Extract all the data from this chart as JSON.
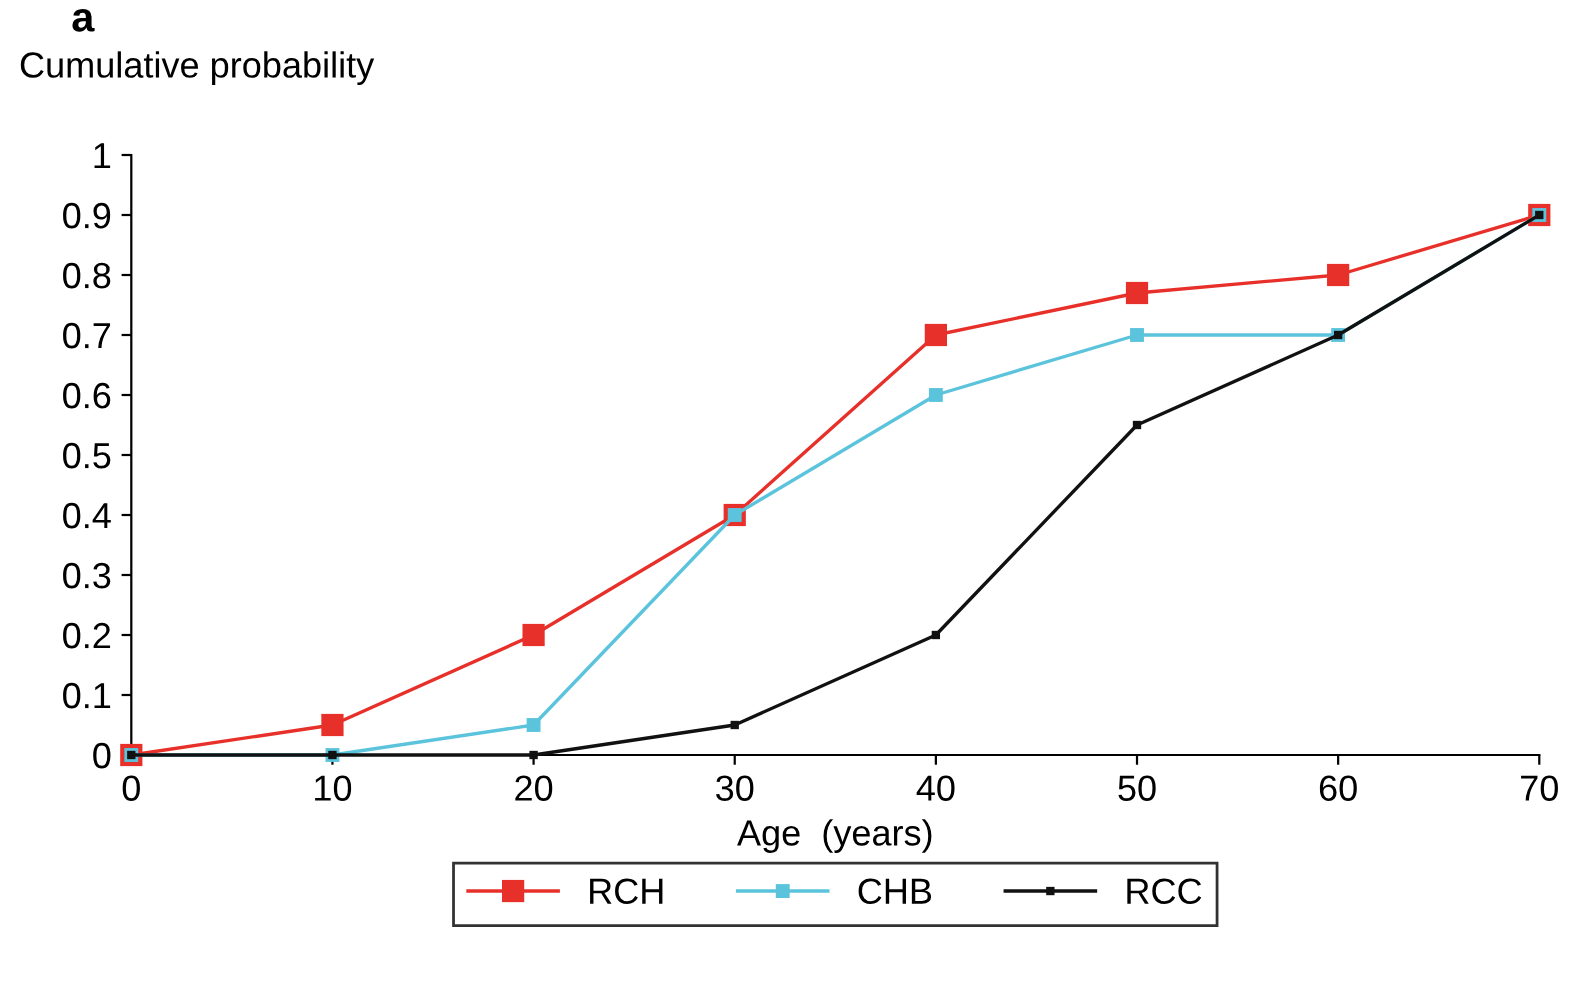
{
  "chart_data": {
    "type": "line",
    "title": "a",
    "ylabel": "Cumulative probability",
    "xlabel": "Age  (years)",
    "x": [
      0,
      10,
      20,
      30,
      40,
      50,
      60,
      70
    ],
    "series": [
      {
        "name": "RCH",
        "color": "#e8302a",
        "marker": "square",
        "values": [
          0,
          0.05,
          0.2,
          0.4,
          0.7,
          0.77,
          0.8,
          0.9
        ]
      },
      {
        "name": "CHB",
        "color": "#5bc4dc",
        "marker": "square",
        "values": [
          0,
          0,
          0.05,
          0.4,
          0.6,
          0.7,
          0.7,
          0.9
        ]
      },
      {
        "name": "RCC",
        "color": "#111111",
        "marker": "square",
        "values": [
          0,
          0,
          0,
          0.05,
          0.2,
          0.55,
          0.7,
          0.9
        ]
      }
    ],
    "xlim": [
      0,
      70
    ],
    "xticks": [
      0,
      10,
      20,
      30,
      40,
      50,
      60,
      70
    ],
    "ylim": [
      0,
      1
    ],
    "yticks": [
      0,
      0.1,
      0.2,
      0.3,
      0.4,
      0.5,
      0.6,
      0.7,
      0.8,
      0.9,
      1
    ],
    "grid": false,
    "legend": "bottom",
    "line_style": "solid"
  }
}
